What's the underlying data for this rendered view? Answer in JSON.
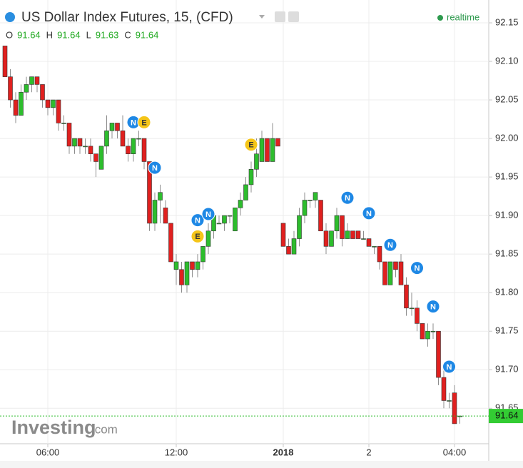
{
  "chart_data": {
    "type": "candlestick",
    "title": "US Dollar Index Futures, 15, (CFD)",
    "status": "realtime",
    "ohlc_legend": [
      {
        "key": "O",
        "value": 91.64
      },
      {
        "key": "H",
        "value": 91.64
      },
      {
        "key": "L",
        "value": 91.63
      },
      {
        "key": "C",
        "value": 91.64
      }
    ],
    "watermark": {
      "brand": "Investing",
      "suffix": ".com"
    },
    "categories": [
      null,
      null,
      null,
      null,
      null,
      null,
      null,
      null,
      "06:00",
      null,
      null,
      null,
      null,
      null,
      null,
      null,
      null,
      null,
      null,
      null,
      null,
      null,
      null,
      null,
      null,
      null,
      null,
      null,
      null,
      null,
      null,
      null,
      "12:00",
      null,
      null,
      null,
      null,
      null,
      null,
      null,
      null,
      null,
      null,
      null,
      null,
      null,
      null,
      null,
      null,
      null,
      null,
      null,
      "2018",
      null,
      null,
      null,
      null,
      null,
      null,
      null,
      null,
      null,
      null,
      null,
      null,
      null,
      null,
      null,
      "2",
      null,
      null,
      null,
      null,
      null,
      null,
      null,
      null,
      null,
      null,
      null,
      null,
      null,
      null,
      null,
      "04:00",
      null
    ],
    "open": [
      92.12,
      92.08,
      92.05,
      92.03,
      92.06,
      92.07,
      92.08,
      92.07,
      92.05,
      92.04,
      92.05,
      92.02,
      92.02,
      91.99,
      92.0,
      91.99,
      91.99,
      91.98,
      91.96,
      91.99,
      92.01,
      92.02,
      92.01,
      91.99,
      91.98,
      92.0,
      92.0,
      91.97,
      91.89,
      91.92,
      91.91,
      91.89,
      91.83,
      91.83,
      91.81,
      91.84,
      91.83,
      91.84,
      91.86,
      91.88,
      91.89,
      91.89,
      91.9,
      91.88,
      91.91,
      91.92,
      91.94,
      91.96,
      91.97,
      92.0,
      91.97,
      92.0,
      91.89,
      91.86,
      91.85,
      91.87,
      91.9,
      91.92,
      91.92,
      91.92,
      91.88,
      91.86,
      91.88,
      91.9,
      91.87,
      91.88,
      91.88,
      91.87,
      91.87,
      91.86,
      91.86,
      91.84,
      91.81,
      91.84,
      91.84,
      91.81,
      91.78,
      91.78,
      91.76,
      91.74,
      91.75,
      91.75,
      91.69,
      91.66,
      91.67,
      91.64
    ],
    "high": [
      92.12,
      92.09,
      92.06,
      92.07,
      92.08,
      92.08,
      92.08,
      92.07,
      92.05,
      92.05,
      92.05,
      92.03,
      92.02,
      92.0,
      92.0,
      92.0,
      92.0,
      91.98,
      91.99,
      92.03,
      92.02,
      92.02,
      92.03,
      92.0,
      92.0,
      92.01,
      92.0,
      91.97,
      91.93,
      91.94,
      91.92,
      91.89,
      91.85,
      91.84,
      91.84,
      91.84,
      91.85,
      91.86,
      91.89,
      91.9,
      91.9,
      91.9,
      91.9,
      91.91,
      91.93,
      91.95,
      91.97,
      92.0,
      92.01,
      92.0,
      92.02,
      92.0,
      91.89,
      91.87,
      91.88,
      91.91,
      91.93,
      91.92,
      91.93,
      91.92,
      91.89,
      91.88,
      91.91,
      91.9,
      91.89,
      91.88,
      91.88,
      91.88,
      91.87,
      91.86,
      91.86,
      91.84,
      91.84,
      91.84,
      91.85,
      91.82,
      91.8,
      91.79,
      91.76,
      91.76,
      91.76,
      91.75,
      91.7,
      91.67,
      91.68,
      91.64
    ],
    "low": [
      92.08,
      92.04,
      92.02,
      92.03,
      92.05,
      92.06,
      92.06,
      92.04,
      92.03,
      92.03,
      92.01,
      92.01,
      91.98,
      91.98,
      91.98,
      91.98,
      91.97,
      91.95,
      91.96,
      91.98,
      92.0,
      92.0,
      91.99,
      91.97,
      91.97,
      91.99,
      91.96,
      91.88,
      91.88,
      91.89,
      91.89,
      91.84,
      91.81,
      91.8,
      91.8,
      91.82,
      91.82,
      91.83,
      91.85,
      91.87,
      91.89,
      91.88,
      91.89,
      91.88,
      91.9,
      91.92,
      91.93,
      91.95,
      91.97,
      91.97,
      91.97,
      91.99,
      91.86,
      91.85,
      91.85,
      91.86,
      91.89,
      91.91,
      91.91,
      91.88,
      91.85,
      91.86,
      91.87,
      91.86,
      91.87,
      91.87,
      91.87,
      91.87,
      91.86,
      91.85,
      91.83,
      91.81,
      91.81,
      91.82,
      91.81,
      91.77,
      91.77,
      91.75,
      91.74,
      91.73,
      91.74,
      91.68,
      91.65,
      91.65,
      91.63,
      91.63
    ],
    "close": [
      92.08,
      92.05,
      92.03,
      92.06,
      92.07,
      92.08,
      92.07,
      92.05,
      92.04,
      92.05,
      92.02,
      92.02,
      91.99,
      92.0,
      91.99,
      91.99,
      91.98,
      91.97,
      91.99,
      92.01,
      92.02,
      92.01,
      91.99,
      91.98,
      92.0,
      92.0,
      91.97,
      91.89,
      91.92,
      91.93,
      91.89,
      91.84,
      91.84,
      91.81,
      91.84,
      91.83,
      91.84,
      91.86,
      91.88,
      91.9,
      91.89,
      91.9,
      91.9,
      91.91,
      91.92,
      91.94,
      91.96,
      91.98,
      92.0,
      91.97,
      92.0,
      91.99,
      91.86,
      91.85,
      91.87,
      91.9,
      91.92,
      91.92,
      91.93,
      91.88,
      91.86,
      91.88,
      91.9,
      91.87,
      91.88,
      91.87,
      91.87,
      91.87,
      91.86,
      91.86,
      91.84,
      91.81,
      91.84,
      91.83,
      91.81,
      91.78,
      91.78,
      91.76,
      91.74,
      91.75,
      91.75,
      91.69,
      91.66,
      91.66,
      91.63,
      91.64
    ],
    "up_color": "#2dbd2d",
    "down_color": "#e0201f",
    "events": [
      {
        "label": "N",
        "candle": 24,
        "value": 92.021
      },
      {
        "label": "E",
        "candle": 26,
        "value": 92.021
      },
      {
        "label": "N",
        "candle": 28,
        "value": 91.962
      },
      {
        "label": "N",
        "candle": 36,
        "value": 91.894
      },
      {
        "label": "N",
        "candle": 38,
        "value": 91.902
      },
      {
        "label": "E",
        "candle": 36,
        "value": 91.873
      },
      {
        "label": "E",
        "candle": 46,
        "value": 91.992
      },
      {
        "label": "N",
        "candle": 64,
        "value": 91.923
      },
      {
        "label": "N",
        "candle": 68,
        "value": 91.903
      },
      {
        "label": "N",
        "candle": 72,
        "value": 91.862
      },
      {
        "label": "N",
        "candle": 77,
        "value": 91.832
      },
      {
        "label": "N",
        "candle": 80,
        "value": 91.782
      },
      {
        "label": "N",
        "candle": 83,
        "value": 91.704
      }
    ],
    "last_price": 91.64,
    "ylim": [
      91.604,
      92.1796
    ],
    "yticks": [
      91.65,
      {
        "value": 91.7,
        "label": "91.70"
      },
      91.75,
      {
        "value": 91.8,
        "label": "91.80"
      },
      91.85,
      {
        "value": 91.9,
        "label": "91.90"
      },
      91.95,
      {
        "value": 92,
        "label": "92.00"
      },
      92.05,
      {
        "value": 92.1,
        "label": "92.10"
      },
      92.15
    ],
    "grid": true
  }
}
